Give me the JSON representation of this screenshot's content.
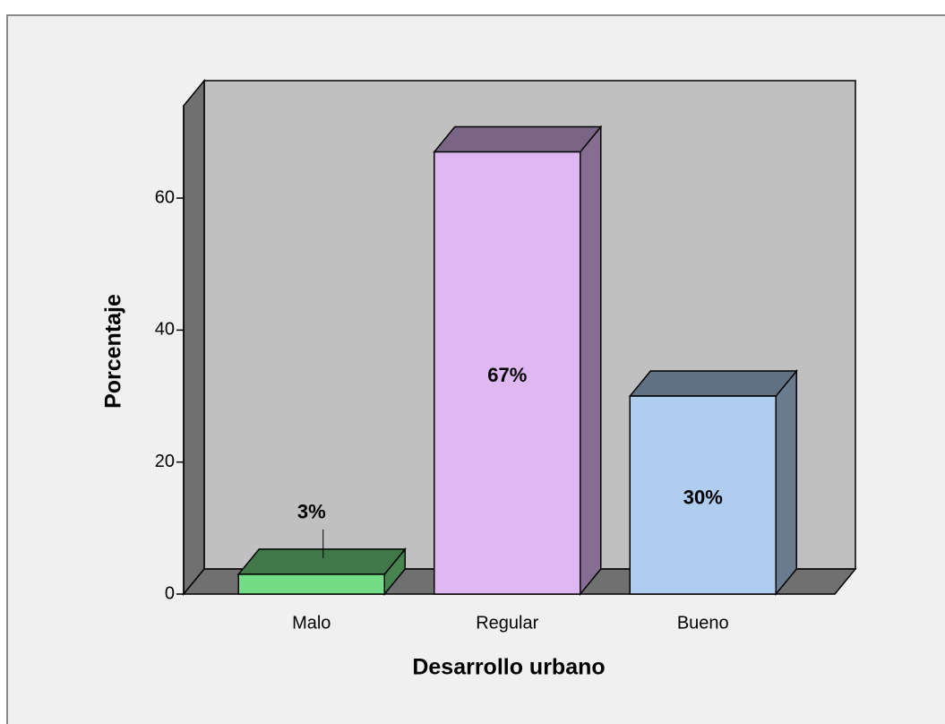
{
  "chart_data": {
    "type": "bar3d",
    "xlabel": "Desarrollo urbano",
    "ylabel": "Porcentaje",
    "categories": [
      "Malo",
      "Regular",
      "Bueno"
    ],
    "values": [
      3,
      67,
      30
    ],
    "value_labels": [
      "3%",
      "67%",
      "30%"
    ],
    "colors": [
      "#74dc84",
      "#dfb8f3",
      "#aecdef"
    ],
    "ylim": [
      0,
      74
    ],
    "yticks": [
      0,
      20,
      40,
      60
    ]
  }
}
